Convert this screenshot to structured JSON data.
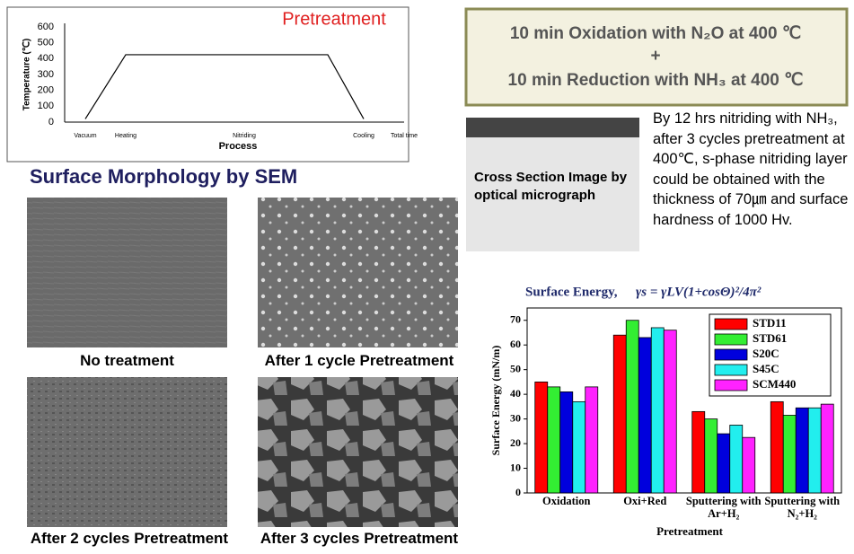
{
  "chart_data": [
    {
      "type": "line",
      "title": "Pretreatment",
      "y_label": "Temperature (℃)",
      "x_label": "Process",
      "categories": [
        "Vacuum",
        "Heating",
        "Nitriding",
        null,
        "Cooling",
        "Total time"
      ],
      "values": [
        20,
        425,
        425,
        425,
        20,
        null
      ],
      "color": "#000000",
      "ylim": [
        0,
        600
      ],
      "yticks": [
        0,
        100,
        200,
        300,
        400,
        500,
        600
      ],
      "grid": false
    },
    {
      "type": "bar",
      "title": "Surface Energy,",
      "formula": "γs = γLV(1+cosΘ)²/4π²",
      "y_label": "Surface Energy (mN/m)",
      "x_label": "Pretreatment",
      "categories": [
        "Oxidation",
        "Oxi+Red",
        "Sputtering with Ar+H₂",
        "Sputtering with N₂+H₂"
      ],
      "series": [
        {
          "name": "STD11",
          "color": "#ff0000",
          "values": [
            45,
            64,
            33,
            37
          ]
        },
        {
          "name": "STD61",
          "color": "#33ee33",
          "values": [
            43,
            70,
            30,
            31.5
          ]
        },
        {
          "name": "S20C",
          "color": "#0000dd",
          "values": [
            41,
            63,
            24,
            34.5
          ]
        },
        {
          "name": "S45C",
          "color": "#22eeee",
          "values": [
            37,
            67,
            27.5,
            34.5
          ]
        },
        {
          "name": "SCM440",
          "color": "#ff22ff",
          "values": [
            43,
            66,
            22.5,
            36
          ]
        }
      ],
      "ylim": [
        0,
        75
      ],
      "yticks": [
        0,
        10,
        20,
        30,
        40,
        50,
        60,
        70
      ],
      "grid": false,
      "legend": "top-right"
    }
  ],
  "process_box": {
    "lines": [
      "10 min Oxidation with N₂O at 400 ℃",
      "+",
      "10 min Reduction with NH₃ at 400 ℃"
    ]
  },
  "micrograph": {
    "label": "Cross Section Image by optical micrograph"
  },
  "summary": {
    "text": "By 12 hrs nitriding with NH₃, after 3 cycles pretreatment at 400℃, s-phase nitriding layer could be obtained with the thickness of 70㎛ and surface hardness of 1000 Hv."
  },
  "sem": {
    "title": "Surface Morphology by SEM",
    "captions": [
      "No treatment",
      "After 1 cycle Pretreatment",
      "After 2 cycles Pretreatment",
      "After 3 cycles Pretreatment"
    ]
  }
}
